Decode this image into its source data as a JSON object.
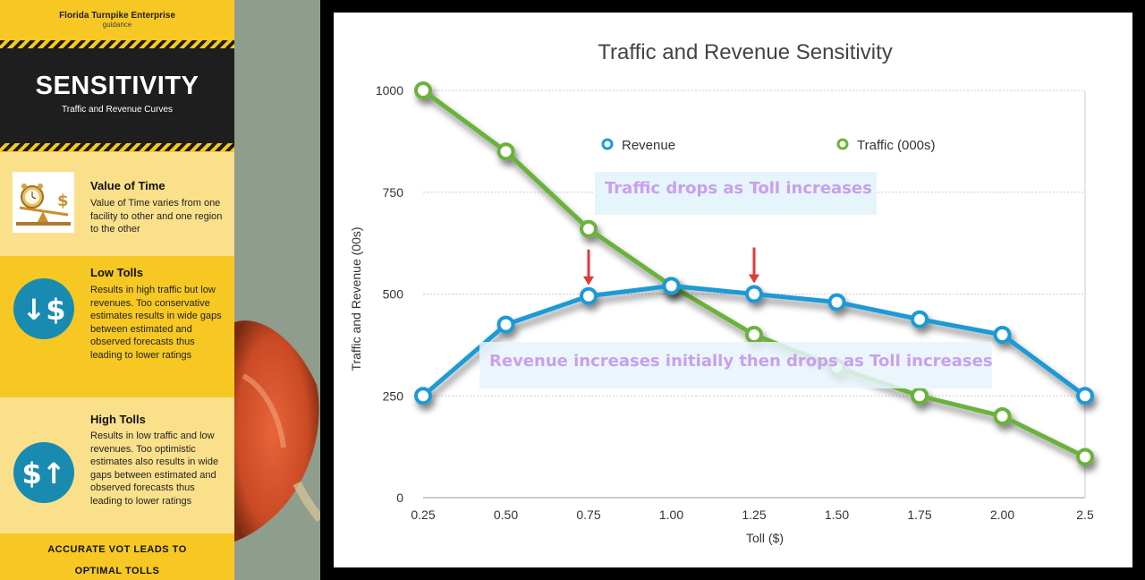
{
  "panel": {
    "org": "Florida Turnpike Enterprise",
    "sub": "guidance",
    "title": "SENSITIVITY",
    "subtitle": "Traffic and Revenue Curves",
    "sections": [
      {
        "heading": "Value of Time",
        "text": "Value of Time varies from one facility to other and one region to the other",
        "icon": "value-of-time-image"
      },
      {
        "heading": "Low Tolls",
        "text": "Results in high traffic but low revenues. Too conservative estimates results in wide gaps between estimated and observed forecasts thus leading to lower ratings",
        "icon": "down-arrow-dollar-icon",
        "glyph": "↓$"
      },
      {
        "heading": "High Tolls",
        "text": "Results in low traffic and low revenues. Too optimistic estimates also results in wide gaps between estimated and observed forecasts thus leading to lower ratings",
        "icon": "dollar-up-arrow-icon",
        "glyph": "$↑"
      }
    ],
    "footer_line1": "ACCURATE VOT  LEADS TO",
    "footer_line2": "OPTIMAL TOLLS"
  },
  "colors": {
    "panel_yellow": "#f7c824",
    "panel_light": "#fbe08b",
    "dark": "#1e1e1e",
    "icon_blue": "#1a8bb0",
    "revenue": "#1e9ad6",
    "traffic": "#6ab23a",
    "annotation_text": "#c9a0ea",
    "annotation_bg": "#e6f4fb",
    "arrow_red": "#e03a3a"
  },
  "chart_data": {
    "type": "line",
    "title": "Traffic and Revenue Sensitivity",
    "xlabel": "Toll ($)",
    "ylabel": "Traffic and Revenue (00s)",
    "categories": [
      "0.25",
      "0.50",
      "0.75",
      "1.00",
      "1.25",
      "1.50",
      "1.75",
      "2.00",
      "2.5"
    ],
    "ylim": [
      0,
      1000
    ],
    "yticks": [
      "0",
      "250",
      "500",
      "750",
      "1000"
    ],
    "grid": true,
    "legend_position": "top",
    "series": [
      {
        "name": "Revenue",
        "values": [
          250,
          425,
          495,
          520,
          500,
          480,
          438,
          400,
          250
        ]
      },
      {
        "name": "Traffic (000s)",
        "values": [
          1000,
          850,
          660,
          520,
          400,
          320,
          250,
          200,
          100
        ]
      }
    ],
    "annotations": [
      {
        "text": "Traffic drops as Toll increases"
      },
      {
        "text": "Revenue increases initially then drops as Toll increases"
      }
    ],
    "markers": [
      {
        "category": "0.75",
        "note": "red arrow"
      },
      {
        "category": "1.25",
        "note": "red arrow"
      }
    ]
  }
}
